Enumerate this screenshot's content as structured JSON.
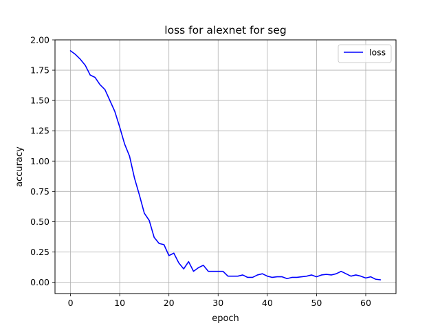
{
  "chart_data": {
    "type": "line",
    "title": "loss for alexnet for seg",
    "xlabel": "epoch",
    "ylabel": "accuracy",
    "xlim": [
      -3.15,
      66.15
    ],
    "ylim": [
      -0.0935,
      2.0
    ],
    "xticks": [
      0,
      10,
      20,
      30,
      40,
      50,
      60
    ],
    "yticks": [
      0.0,
      0.25,
      0.5,
      0.75,
      1.0,
      1.25,
      1.5,
      1.75,
      2.0
    ],
    "xtick_labels": [
      "0",
      "10",
      "20",
      "30",
      "40",
      "50",
      "60"
    ],
    "ytick_labels": [
      "0.00",
      "0.25",
      "0.50",
      "0.75",
      "1.00",
      "1.25",
      "1.50",
      "1.75",
      "2.00"
    ],
    "grid": true,
    "legend_position": "top-right",
    "series": [
      {
        "name": "loss",
        "color": "#0000ff",
        "x": [
          0,
          1,
          2,
          3,
          4,
          5,
          6,
          7,
          8,
          9,
          10,
          11,
          12,
          13,
          14,
          15,
          16,
          17,
          18,
          19,
          20,
          21,
          22,
          23,
          24,
          25,
          26,
          27,
          28,
          29,
          30,
          31,
          32,
          33,
          34,
          35,
          36,
          37,
          38,
          39,
          40,
          41,
          42,
          43,
          44,
          45,
          46,
          47,
          48,
          49,
          50,
          51,
          52,
          53,
          54,
          55,
          56,
          57,
          58,
          59,
          60,
          61,
          62,
          63
        ],
        "y": [
          1.91,
          1.88,
          1.84,
          1.79,
          1.71,
          1.69,
          1.63,
          1.59,
          1.5,
          1.41,
          1.28,
          1.14,
          1.04,
          0.86,
          0.72,
          0.57,
          0.51,
          0.37,
          0.32,
          0.31,
          0.22,
          0.24,
          0.16,
          0.11,
          0.17,
          0.09,
          0.12,
          0.14,
          0.09,
          0.09,
          0.09,
          0.09,
          0.05,
          0.05,
          0.05,
          0.06,
          0.04,
          0.04,
          0.06,
          0.07,
          0.05,
          0.04,
          0.045,
          0.045,
          0.03,
          0.04,
          0.04,
          0.045,
          0.05,
          0.06,
          0.045,
          0.06,
          0.065,
          0.06,
          0.07,
          0.09,
          0.07,
          0.05,
          0.06,
          0.05,
          0.035,
          0.045,
          0.025,
          0.02
        ]
      }
    ]
  }
}
